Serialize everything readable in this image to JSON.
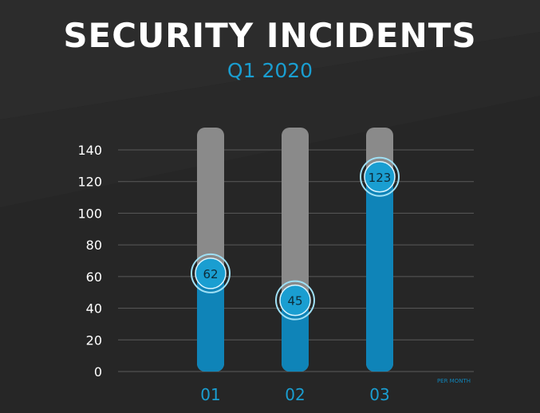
{
  "title": "SECURITY INCIDENTS",
  "subtitle": "Q1 2020",
  "colors": {
    "background": "#262626",
    "bar_fill": "#0f84b8",
    "bar_track": "#8a8a8a",
    "accent": "#1a9ed1",
    "grid": "#5a5a5a",
    "text": "#ffffff"
  },
  "chart_data": {
    "type": "bar",
    "categories": [
      "01",
      "02",
      "03"
    ],
    "values": [
      62,
      45,
      123
    ],
    "ylim": [
      0,
      150
    ],
    "yticks": [
      0,
      20,
      40,
      60,
      80,
      100,
      120,
      140
    ],
    "data_labels": [
      "62",
      "45",
      "123"
    ],
    "annotation": "PER MONTH",
    "grid": true
  }
}
